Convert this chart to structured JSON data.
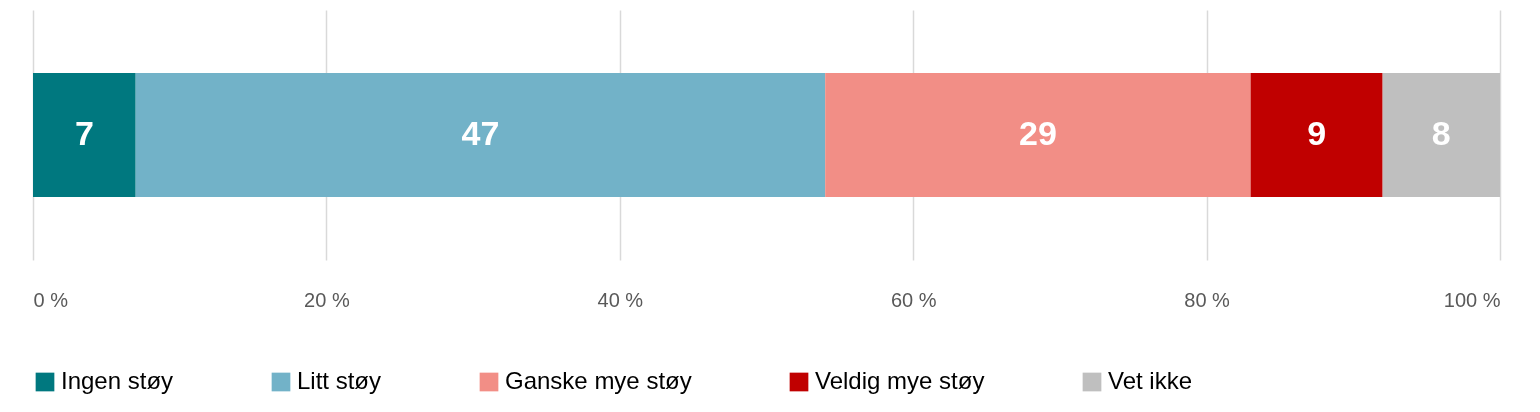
{
  "chart_data": {
    "type": "bar",
    "orientation": "horizontal",
    "stacked": true,
    "categories": [
      null
    ],
    "series": [
      {
        "name": "Ingen støy",
        "color": "#00787f",
        "values": [
          7
        ]
      },
      {
        "name": "Litt støy",
        "color": "#72b2c8",
        "values": [
          47
        ]
      },
      {
        "name": "Ganske mye støy",
        "color": "#f28e86",
        "values": [
          29
        ]
      },
      {
        "name": "Veldig mye støy",
        "color": "#c00000",
        "values": [
          9
        ]
      },
      {
        "name": "Vet ikke",
        "color": "#bfbfbf",
        "values": [
          8
        ]
      }
    ],
    "xlim": [
      0,
      100
    ],
    "xticks": [
      {
        "value": 0,
        "label": "0 %"
      },
      {
        "value": 20,
        "label": "20 %"
      },
      {
        "value": 40,
        "label": "40 %"
      },
      {
        "value": 60,
        "label": "60 %"
      },
      {
        "value": 80,
        "label": "80 %"
      },
      {
        "value": 100,
        "label": "100 %"
      }
    ],
    "grid": "x",
    "legend": "bottom",
    "data_labels": true
  }
}
